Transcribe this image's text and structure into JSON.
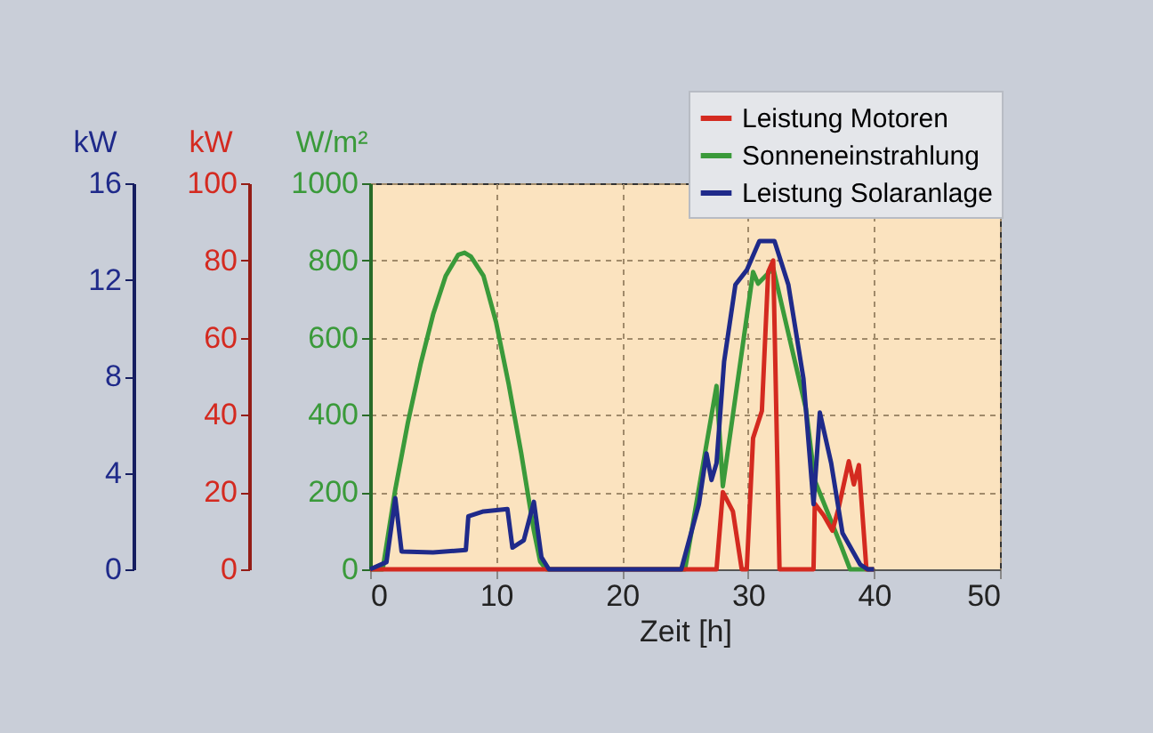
{
  "chart_data": {
    "type": "line",
    "xlabel": "Zeit [h]",
    "ylabel": "W/m²",
    "y2label": "kW",
    "y3label": "kW",
    "xlim": [
      0,
      50
    ],
    "xticks": [
      0,
      10,
      20,
      30,
      40,
      50
    ],
    "ylim": [
      0,
      1000
    ],
    "yticks": [
      0,
      200,
      400,
      600,
      800,
      1000
    ],
    "y2lim": [
      0,
      100
    ],
    "y2ticks": [
      0,
      20,
      40,
      60,
      80,
      100
    ],
    "y3lim": [
      0,
      16
    ],
    "y3ticks": [
      0,
      4,
      8,
      12,
      16
    ],
    "grid": true,
    "legend": "top right",
    "marker": "none",
    "line_style": "solid",
    "series": [
      {
        "name": "Leistung Motoren",
        "color": "#d42a20",
        "axis": "y2",
        "x": [
          0,
          27.5,
          28.0,
          28.8,
          29.5,
          29.9,
          30.4,
          31.1,
          31.6,
          32.0,
          32.5,
          35.2,
          35.3,
          36.0,
          36.7,
          37.2,
          38.0,
          38.4,
          38.8,
          39.4,
          40
        ],
        "values": [
          0,
          0,
          20,
          15,
          0,
          0,
          34,
          41,
          77,
          80,
          0,
          0,
          17,
          14,
          10,
          16,
          28,
          22,
          27,
          0,
          0
        ]
      },
      {
        "name": "Sonneneinstrahlung",
        "color": "#3a9a3a",
        "axis": "y",
        "x": [
          0,
          1,
          2,
          3,
          4,
          5,
          6,
          7,
          7.5,
          8,
          9,
          10,
          11,
          12,
          13,
          13.5,
          14,
          25.0,
          27.5,
          28.0,
          30.4,
          30.8,
          32.0,
          34.6,
          35.3,
          37.4,
          38.1,
          40
        ],
        "values": [
          0,
          0,
          207,
          380,
          530,
          660,
          760,
          815,
          820,
          810,
          760,
          640,
          480,
          300,
          100,
          20,
          0,
          0,
          475,
          215,
          770,
          740,
          780,
          415,
          230,
          60,
          0,
          0
        ]
      },
      {
        "name": "Leistung Solaranlage",
        "color": "#1f2a8a",
        "axis": "y3",
        "x": [
          0,
          1.3,
          2.0,
          2.5,
          5,
          7.6,
          7.8,
          9,
          10.9,
          11.3,
          12.2,
          13.0,
          13.6,
          14.2,
          24.7,
          26.1,
          26.7,
          27.1,
          27.5,
          28.1,
          29.0,
          29.9,
          30.9,
          32.1,
          33.2,
          34.4,
          35.2,
          35.7,
          36.6,
          37.5,
          38.9,
          39.5,
          40
        ],
        "values": [
          0,
          0.3,
          2.95,
          0.74,
          0.7,
          0.8,
          2.2,
          2.4,
          2.5,
          0.9,
          1.2,
          2.8,
          0.5,
          0,
          0,
          2.7,
          4.8,
          3.7,
          4.4,
          8.6,
          11.8,
          12.4,
          13.6,
          13.6,
          11.8,
          7.9,
          2.7,
          6.5,
          4.4,
          1.5,
          0.2,
          0,
          0
        ]
      }
    ]
  }
}
